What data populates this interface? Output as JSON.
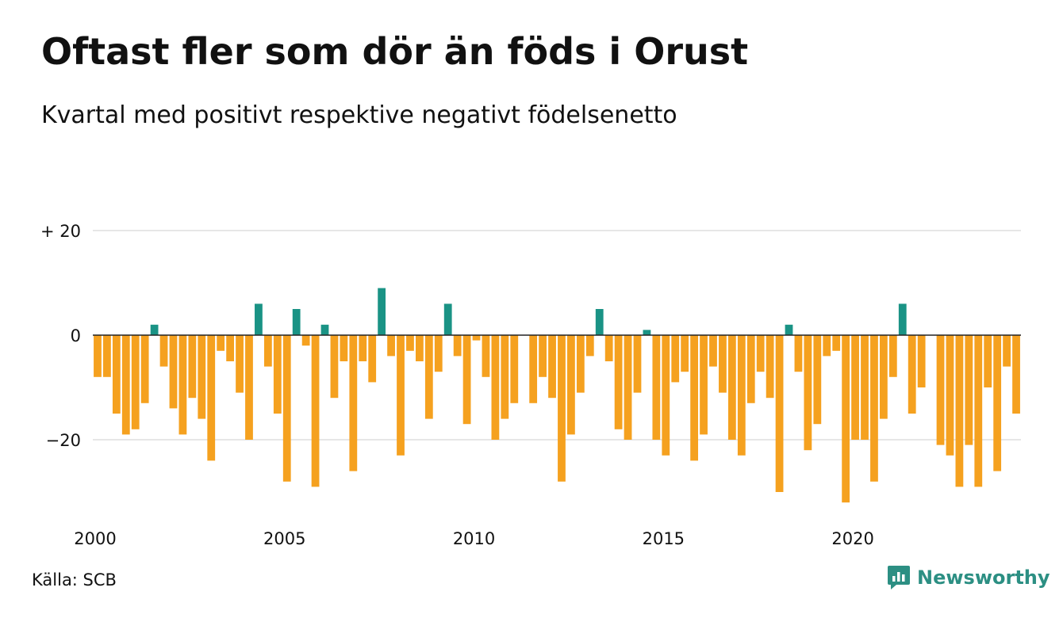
{
  "title": "Oftast fler som dör än föds i Orust",
  "subtitle": "Kvartal med positivt respektive negativt födelsenetto",
  "source": "Källa: SCB",
  "brand": "Newsworthy",
  "colors": {
    "positive": "#1a9385",
    "negative": "#f5a11f",
    "grid": "#dddddd",
    "zero_line": "#222222",
    "brand": "#2c8f83"
  },
  "chart_data": {
    "type": "bar",
    "xlabel": "",
    "ylabel": "",
    "ylim": [
      -34,
      20
    ],
    "grid": true,
    "y_ticks": [
      {
        "value": 20,
        "label": "+ 20"
      },
      {
        "value": 0,
        "label": "0"
      },
      {
        "value": -20,
        "label": "−20"
      }
    ],
    "x_ticks": [
      "2000",
      "2005",
      "2010",
      "2015",
      "2020"
    ],
    "x_start_year": 2000,
    "values": [
      -8,
      -8,
      -15,
      -19,
      -18,
      -13,
      2,
      -6,
      -14,
      -19,
      -12,
      -16,
      -24,
      -3,
      -5,
      -11,
      -20,
      6,
      -6,
      -15,
      -28,
      5,
      -2,
      -29,
      2,
      -12,
      -5,
      -26,
      -5,
      -9,
      9,
      -4,
      -23,
      -3,
      -5,
      -16,
      -7,
      6,
      -4,
      -17,
      -1,
      -8,
      -20,
      -16,
      -13,
      0,
      -13,
      -8,
      -12,
      -28,
      -19,
      -11,
      -4,
      5,
      -5,
      -18,
      -20,
      -11,
      1,
      -20,
      -23,
      -9,
      -7,
      -24,
      -19,
      -6,
      -11,
      -20,
      -23,
      -13,
      -7,
      -12,
      -30,
      2,
      -7,
      -22,
      -17,
      -4,
      -3,
      -32,
      -20,
      -20,
      -28,
      -16,
      -8,
      6,
      -15,
      -10,
      0,
      -21,
      -23,
      -29,
      -21,
      -29,
      -10,
      -26,
      -6,
      -15
    ]
  }
}
